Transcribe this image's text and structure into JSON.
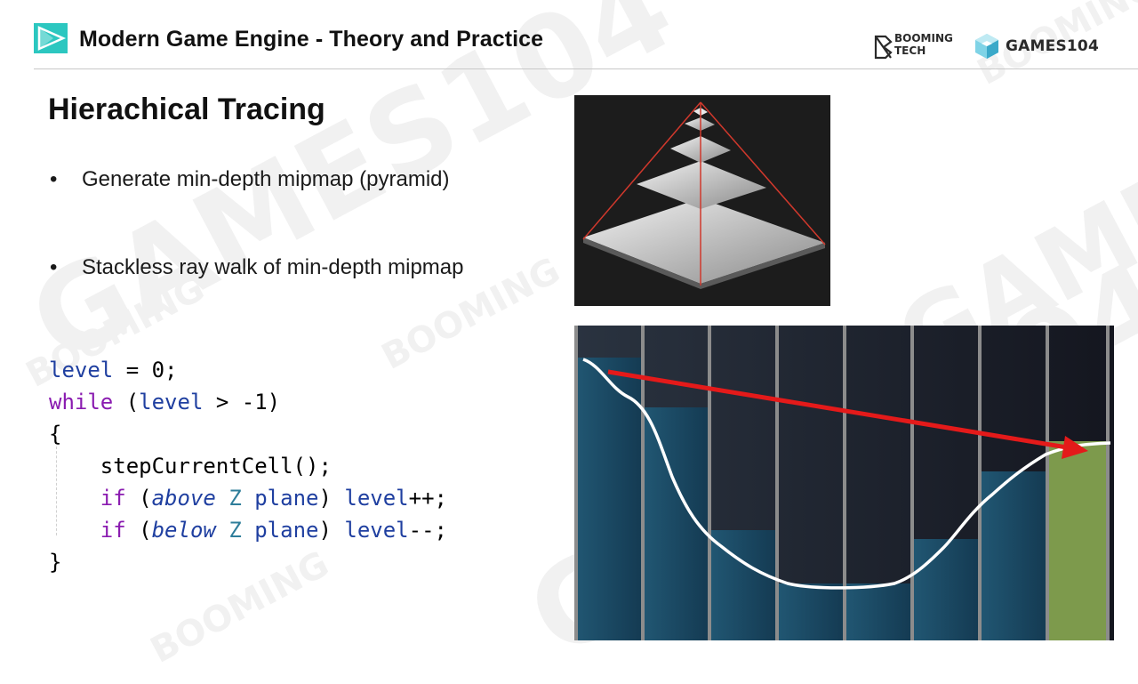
{
  "header": {
    "title": "Modern Game Engine - Theory and Practice",
    "brand_booming_line1": "BOOMING",
    "brand_booming_line2": "TECH",
    "brand_games": "GAMES104"
  },
  "slide": {
    "title": "Hierachical Tracing",
    "bullets": [
      "Generate min-depth mipmap (pyramid)",
      "Stackless ray walk of min-depth mipmap"
    ],
    "bullet_symbol": "•"
  },
  "code": {
    "line1_id": "level",
    "line1_rest": " = 0;",
    "line2_kw": "while",
    "line2_open": " (",
    "line2_id": "level",
    "line2_rest": " > -1)",
    "line3": "{",
    "line4_indent": "    ",
    "line4_id": "stepCurrentCell",
    "line4_rest": "();",
    "line5_indent": "    ",
    "line5_kw": "if",
    "line5_open": " (",
    "line5_it": "above",
    "line5_sp": " ",
    "line5_ty": "Z",
    "line5_id": " plane",
    "line5_close": ") ",
    "line5_id2": "level",
    "line5_rest": "++;",
    "line6_indent": "    ",
    "line6_kw": "if",
    "line6_open": " (",
    "line6_it": "below",
    "line6_sp": " ",
    "line6_ty": "Z",
    "line6_id": " plane",
    "line6_close": ") ",
    "line6_id2": "level",
    "line6_rest": "--;",
    "line7": "}"
  },
  "watermark": {
    "games": "GAMES104",
    "booming": "BOOMING",
    "tech": "TECH"
  },
  "colors": {
    "accent_logo": "#2cc7c0",
    "cell_blue": "#1c4f68",
    "cell_dark": "#1e2430",
    "cell_green": "#7d9a4c",
    "ray_red": "#e41a1a"
  },
  "icons": {
    "header_logo": "play-triangle-icon",
    "booming_logo": "booming-tech-logo-icon",
    "games_logo": "games104-cube-icon"
  }
}
